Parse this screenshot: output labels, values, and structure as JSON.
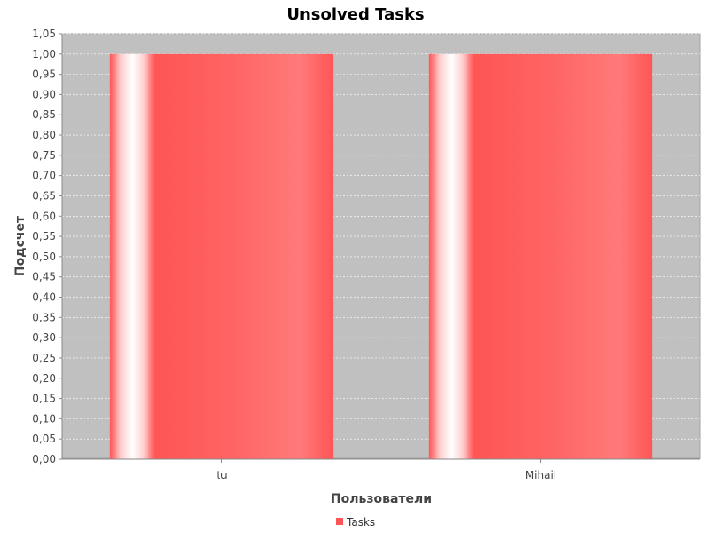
{
  "chart_data": {
    "type": "bar",
    "title": "Unsolved Tasks",
    "xlabel": "Пользователи",
    "ylabel": "Подсчет",
    "categories": [
      "tu",
      "Mihail"
    ],
    "series": [
      {
        "name": "Tasks",
        "values": [
          1,
          1
        ]
      }
    ],
    "ylim": [
      0,
      1.05
    ],
    "ytick_step": 0.05,
    "grid": true,
    "legend_position": "bottom-center",
    "colors": {
      "bar": "#ff5555",
      "plot_background": "#c0c0c0",
      "gridline": "#ffffff"
    }
  }
}
